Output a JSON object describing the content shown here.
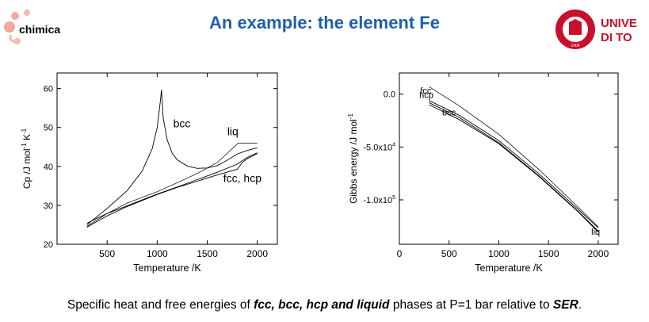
{
  "slide": {
    "title": "An example: the element Fe",
    "title_color": "#1f5fa8",
    "logo_left": {
      "text": "chimica",
      "icon": "molecule-logo-icon",
      "color": "#d93a2b"
    },
    "logo_right": {
      "text_line1": "UNIVE",
      "text_line2": "DI TO",
      "icon": "university-seal-icon",
      "seal_year": "1404",
      "color": "#c8102e"
    },
    "caption": {
      "part1": "Specific heat and free energies of ",
      "bold1": "fcc, bcc, hcp and liquid",
      "part2": " phases at P=1 bar relative to ",
      "bold2": "SER",
      "part3": "."
    }
  },
  "chart_data": [
    {
      "type": "line",
      "title": "",
      "xlabel": "Temperature /K",
      "ylabel": "Cp /J mol",
      "ylabel_sup": "-1",
      "ylabel_suffix": " K",
      "ylabel_sup2": "-1",
      "xlim": [
        0,
        2200
      ],
      "ylim": [
        20,
        64
      ],
      "xticks": [
        500,
        1000,
        1500,
        2000
      ],
      "xtick_labels": [
        "500",
        "1000",
        "1500",
        "2000"
      ],
      "yticks": [
        20,
        30,
        40,
        50,
        60
      ],
      "ytick_labels": [
        "20",
        "30",
        "40",
        "50",
        "60"
      ],
      "grid": false,
      "series": [
        {
          "name": "bcc",
          "x": [
            298,
            500,
            700,
            850,
            950,
            1000,
            1030,
            1043,
            1060,
            1100,
            1150,
            1200,
            1300,
            1400,
            1500,
            1600,
            1700,
            1800,
            1900,
            2000
          ],
          "y": [
            25.0,
            29.2,
            33.8,
            38.8,
            44.5,
            50.0,
            56.5,
            59.7,
            52.5,
            46.8,
            43.4,
            41.7,
            40.1,
            39.5,
            39.6,
            40.2,
            41.6,
            43.2,
            44.1,
            44.8
          ]
        },
        {
          "name": "fcc, hcp",
          "x": [
            298,
            500,
            700,
            1000,
            1200,
            1400,
            1600,
            1800,
            1850,
            1900,
            2000
          ],
          "y": [
            24.4,
            27.3,
            29.7,
            32.8,
            34.6,
            36.2,
            37.8,
            39.3,
            41.0,
            42.0,
            43.3
          ]
        },
        {
          "name": "fcc, hcp",
          "x": [
            298,
            500,
            700,
            1000,
            1200,
            1400,
            1600,
            1800,
            1900,
            2000
          ],
          "y": [
            25.4,
            27.9,
            29.9,
            32.9,
            34.7,
            36.6,
            38.5,
            40.6,
            42.3,
            43.5
          ]
        },
        {
          "name": "liq",
          "x": [
            298,
            500,
            700,
            1000,
            1200,
            1400,
            1600,
            1810,
            1900,
            2000
          ],
          "y": [
            24.6,
            27.9,
            30.6,
            33.5,
            35.8,
            38.2,
            41.0,
            46.0,
            46.0,
            46.0
          ]
        }
      ],
      "annotations": [
        {
          "text": "bcc",
          "x": 1160,
          "y": 50
        },
        {
          "text": "liq",
          "x": 1700,
          "y": 48
        },
        {
          "text": "fcc, hcp",
          "x": 1660,
          "y": 36
        }
      ]
    },
    {
      "type": "line",
      "title": "",
      "xlabel": "Temperature /K",
      "ylabel": "Gibbs energy /J mol",
      "ylabel_sup": "-1",
      "xlim": [
        0,
        2200
      ],
      "ylim": [
        -142000,
        20000
      ],
      "xticks": [
        0,
        500,
        1000,
        1500,
        2000
      ],
      "xtick_labels": [
        "0",
        "500",
        "1000",
        "1500",
        "2000"
      ],
      "yticks": [
        0,
        -50000,
        -100000
      ],
      "ytick_labels": [
        {
          "base": "0.0",
          "exp": ""
        },
        {
          "base": "-5.0x10",
          "exp": "4"
        },
        {
          "base": "-1.0x10",
          "exp": "5"
        }
      ],
      "grid": false,
      "series": [
        {
          "name": "fcc",
          "x": [
            298,
            600,
            1000,
            1400,
            1800,
            2000
          ],
          "y": [
            -8000,
            -22000,
            -46000,
            -77000,
            -111000,
            -129500
          ]
        },
        {
          "name": "hcp",
          "x": [
            298,
            600,
            1000,
            1400,
            1800,
            2000
          ],
          "y": [
            -6000,
            -20000,
            -44000,
            -75000,
            -109000,
            -126500
          ]
        },
        {
          "name": "bcc",
          "x": [
            298,
            600,
            1000,
            1400,
            1800,
            2000
          ],
          "y": [
            -10000,
            -24000,
            -47000,
            -77500,
            -111500,
            -130500
          ]
        },
        {
          "name": "liq",
          "x": [
            298,
            600,
            1000,
            1400,
            1800,
            2000
          ],
          "y": [
            7000,
            -11000,
            -38000,
            -71000,
            -107000,
            -125500
          ]
        }
      ],
      "annotations": [
        {
          "text": "fcc",
          "x": 210,
          "y": 500
        },
        {
          "text": "hcp",
          "x": 200,
          "y": -3500
        },
        {
          "text": "bcc",
          "x": 430,
          "y": -20000
        },
        {
          "text": "liq",
          "x": 1930,
          "y": -133000
        }
      ]
    }
  ]
}
